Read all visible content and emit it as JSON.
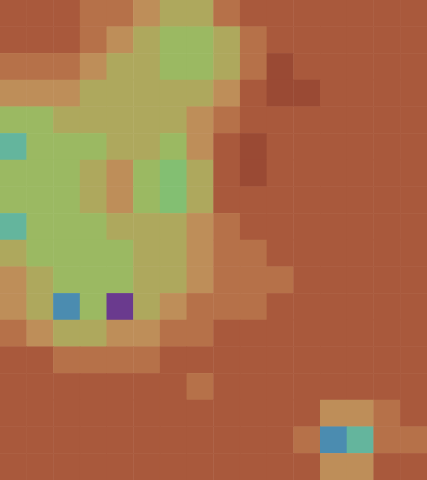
{
  "chart_data": {
    "type": "heatmap",
    "values": [
      [
        9,
        9,
        9,
        8,
        8,
        7,
        6,
        6,
        8,
        9,
        9,
        9,
        9,
        9,
        9,
        9
      ],
      [
        9,
        9,
        9,
        8,
        7,
        6,
        5,
        5,
        6,
        8,
        9,
        9,
        9,
        9,
        9,
        9
      ],
      [
        8,
        8,
        8,
        7,
        6,
        6,
        5,
        5,
        6,
        8,
        10,
        9,
        9,
        9,
        9,
        9
      ],
      [
        7,
        7,
        7,
        6,
        6,
        6,
        6,
        6,
        7,
        9,
        10,
        10,
        9,
        9,
        9,
        9
      ],
      [
        5,
        5,
        6,
        6,
        6,
        6,
        6,
        7,
        8,
        9,
        9,
        9,
        9,
        9,
        9,
        9
      ],
      [
        3,
        5,
        5,
        5,
        6,
        6,
        5,
        7,
        9,
        10,
        9,
        9,
        9,
        9,
        9,
        9
      ],
      [
        5,
        5,
        5,
        6,
        7,
        5,
        4,
        6,
        9,
        10,
        9,
        9,
        9,
        9,
        9,
        9
      ],
      [
        5,
        5,
        5,
        6,
        7,
        5,
        4,
        6,
        9,
        9,
        9,
        9,
        9,
        9,
        9,
        9
      ],
      [
        3,
        5,
        5,
        5,
        6,
        6,
        6,
        7,
        8,
        9,
        9,
        9,
        9,
        9,
        9,
        9
      ],
      [
        6,
        5,
        5,
        5,
        5,
        6,
        6,
        7,
        8,
        8,
        9,
        9,
        9,
        9,
        9,
        9
      ],
      [
        7,
        6,
        5,
        5,
        5,
        6,
        6,
        7,
        8,
        8,
        8,
        9,
        9,
        9,
        9,
        9
      ],
      [
        7,
        6,
        2,
        5,
        0,
        6,
        7,
        8,
        8,
        8,
        9,
        9,
        9,
        9,
        9,
        9
      ],
      [
        8,
        7,
        6,
        6,
        7,
        7,
        8,
        8,
        9,
        9,
        9,
        9,
        9,
        9,
        9,
        9
      ],
      [
        9,
        9,
        8,
        8,
        8,
        8,
        9,
        9,
        9,
        9,
        9,
        9,
        9,
        9,
        9,
        9
      ],
      [
        9,
        9,
        9,
        9,
        9,
        9,
        9,
        8,
        9,
        9,
        9,
        9,
        9,
        9,
        9,
        9
      ],
      [
        9,
        9,
        9,
        9,
        9,
        9,
        9,
        9,
        9,
        9,
        9,
        9,
        7,
        7,
        8,
        9
      ],
      [
        9,
        9,
        9,
        9,
        9,
        9,
        9,
        9,
        9,
        9,
        9,
        8,
        2,
        3,
        8,
        8
      ],
      [
        9,
        9,
        9,
        9,
        9,
        9,
        9,
        9,
        9,
        9,
        9,
        9,
        7,
        7,
        9,
        9
      ]
    ],
    "zlim": [
      0,
      10
    ],
    "tick_labels": false
  }
}
